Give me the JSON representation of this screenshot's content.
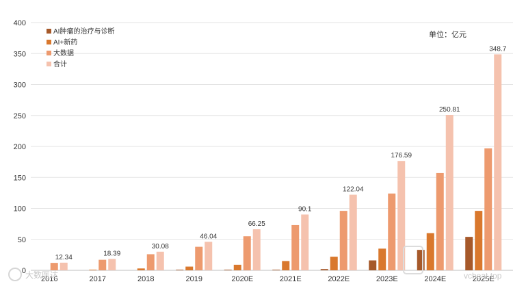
{
  "chart_data": {
    "type": "bar",
    "unit_label": "单位：亿元",
    "categories": [
      "2016",
      "2017",
      "2018",
      "2019",
      "2020E",
      "2021E",
      "2022E",
      "2023E",
      "2024E",
      "2025E"
    ],
    "ylim": [
      0,
      400
    ],
    "yticks": [
      0,
      50,
      100,
      150,
      200,
      250,
      300,
      350,
      400
    ],
    "grid": true,
    "legend_position": "top-left",
    "series": [
      {
        "name": "AI肿瘤的治疗与诊断",
        "color": "#a6592a",
        "values": [
          0,
          0,
          0,
          1,
          1,
          1,
          2,
          16,
          33,
          54
        ]
      },
      {
        "name": "AI+新药",
        "color": "#d9782d",
        "values": [
          0,
          1,
          3,
          6,
          9,
          15,
          22,
          35,
          60,
          96
        ]
      },
      {
        "name": "大数据",
        "color": "#ed9a6e",
        "values": [
          12,
          17,
          26,
          38,
          55,
          73,
          96,
          124,
          157,
          197
        ]
      },
      {
        "name": "合计",
        "color": "#f5c2ae",
        "values": [
          12.34,
          18.39,
          30.08,
          46.04,
          66.25,
          90.1,
          122.04,
          176.59,
          250.81,
          348.7
        ]
      }
    ],
    "data_labels": [
      "12.34",
      "18.39",
      "30.08",
      "46.04",
      "66.25",
      "90.1",
      "122.04",
      "176.59",
      "250.81",
      "348.7"
    ]
  },
  "watermarks": {
    "left": "大数医达",
    "right": "vcbeat.top"
  }
}
